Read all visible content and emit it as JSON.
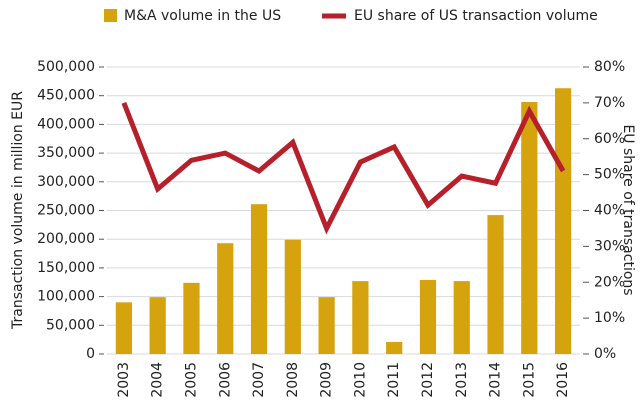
{
  "chart_data": {
    "type": "bar_line",
    "categories": [
      "2003",
      "2004",
      "2005",
      "2006",
      "2007",
      "2008",
      "2009",
      "2010",
      "2011",
      "2012",
      "2013",
      "2014",
      "2015",
      "2016"
    ],
    "series": [
      {
        "name": "M&A volume in the US",
        "type": "bar",
        "color": "#d4a30e",
        "axis": "y",
        "values": [
          90000,
          99000,
          124000,
          193000,
          261000,
          199000,
          99000,
          127000,
          21000,
          129000,
          127000,
          242000,
          439000,
          463000
        ]
      },
      {
        "name": "EU share of US transaction volume",
        "type": "line",
        "color": "#b5202a",
        "axis": "y2",
        "values": [
          70,
          46,
          54,
          56,
          51,
          59,
          35,
          53.5,
          57.7,
          41.5,
          49.6,
          47.6,
          67.7,
          51
        ]
      }
    ],
    "ylabel": "Transaction volume in million EUR",
    "y2label": "EU share of transactions",
    "ylim": [
      0,
      500000
    ],
    "yticks": [
      0,
      {
        "value": 50000,
        "label": "50,000"
      },
      {
        "value": 100000,
        "label": "100,000"
      },
      {
        "value": 150000,
        "label": "150,000"
      },
      {
        "value": 200000,
        "label": "200,000"
      },
      {
        "value": 250000,
        "label": "250,000"
      },
      {
        "value": 300000,
        "label": "300,000"
      },
      {
        "value": 350000,
        "label": "350,000"
      },
      {
        "value": 400000,
        "label": "400,000"
      },
      {
        "value": 450000,
        "label": "450,000"
      },
      {
        "value": 500000,
        "label": "500,000"
      }
    ],
    "y2lim": [
      0,
      80
    ],
    "y2ticks": [
      {
        "value": 0,
        "label": "0%"
      },
      {
        "value": 10,
        "label": "10%"
      },
      {
        "value": 20,
        "label": "20%"
      },
      {
        "value": 30,
        "label": "30%"
      },
      {
        "value": 40,
        "label": "40%"
      },
      {
        "value": 50,
        "label": "50%"
      },
      {
        "value": 60,
        "label": "60%"
      },
      {
        "value": 70,
        "label": "70%"
      },
      {
        "value": 80,
        "label": "80%"
      }
    ],
    "grid": true,
    "legend": "top"
  }
}
